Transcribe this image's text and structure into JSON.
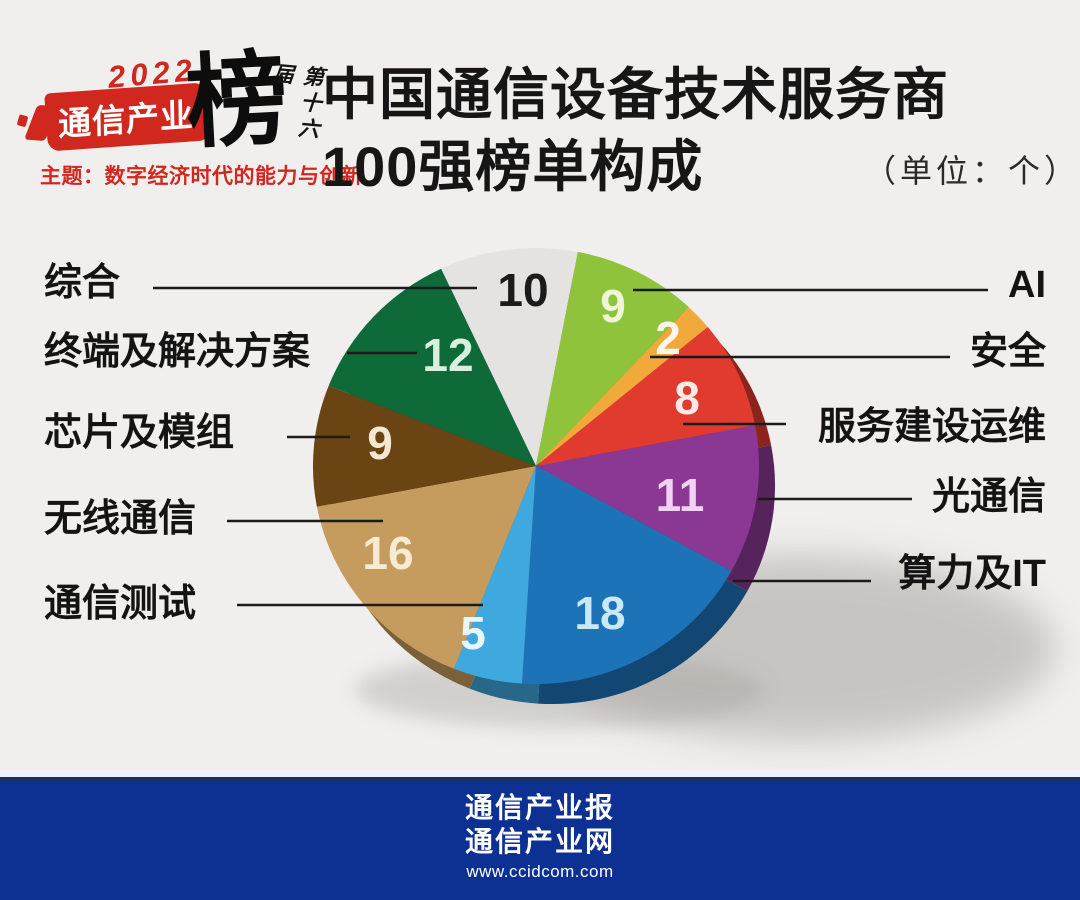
{
  "logo": {
    "year": "2022",
    "brand": "通信产业",
    "bang": "榜",
    "edition": "第十六届",
    "theme": "主题：数字经济时代的能力与创新"
  },
  "header": {
    "title_line1": "中国通信设备技术服务商",
    "title_line2": "100强榜单构成",
    "unit_note": "（单位：个）"
  },
  "chart_data": {
    "type": "pie",
    "title": "中国通信设备技术服务商100强榜单构成",
    "unit": "个",
    "total": 100,
    "direction": "clockwise",
    "start_angle_deg": -25.2,
    "style": "3d",
    "slices": [
      {
        "label": "综合",
        "value": 10,
        "color": "#e4e3e1",
        "value_color": "#1b1b1b",
        "side": "left"
      },
      {
        "label": "AI",
        "value": 9,
        "color": "#8fc33c",
        "value_color": "#eef5d8",
        "side": "right"
      },
      {
        "label": "安全",
        "value": 2,
        "color": "#f2a93b",
        "value_color": "#fdf6ea",
        "side": "right"
      },
      {
        "label": "服务建设运维",
        "value": 8,
        "color": "#e13a2e",
        "value_color": "#fbeae6",
        "side": "right"
      },
      {
        "label": "光通信",
        "value": 11,
        "color": "#8b3894",
        "value_color": "#f0d3f2",
        "side": "right"
      },
      {
        "label": "算力及IT",
        "value": 18,
        "color": "#1c73b8",
        "value_color": "#c9e8f8",
        "side": "right"
      },
      {
        "label": "通信测试",
        "value": 5,
        "color": "#3fa8de",
        "value_color": "#e8f6fd",
        "side": "left"
      },
      {
        "label": "无线通信",
        "value": 16,
        "color": "#c69c5e",
        "value_color": "#f6ecd4",
        "side": "left"
      },
      {
        "label": "芯片及模组",
        "value": 9,
        "color": "#6a4412",
        "value_color": "#f3e8d2",
        "side": "left"
      },
      {
        "label": "终端及解决方案",
        "value": 12,
        "color": "#0f6a39",
        "value_color": "#d9efdf",
        "side": "left"
      }
    ]
  },
  "footer": {
    "line1": "通信产业报",
    "line2": "通信产业网",
    "url": "www.ccidcom.com"
  }
}
